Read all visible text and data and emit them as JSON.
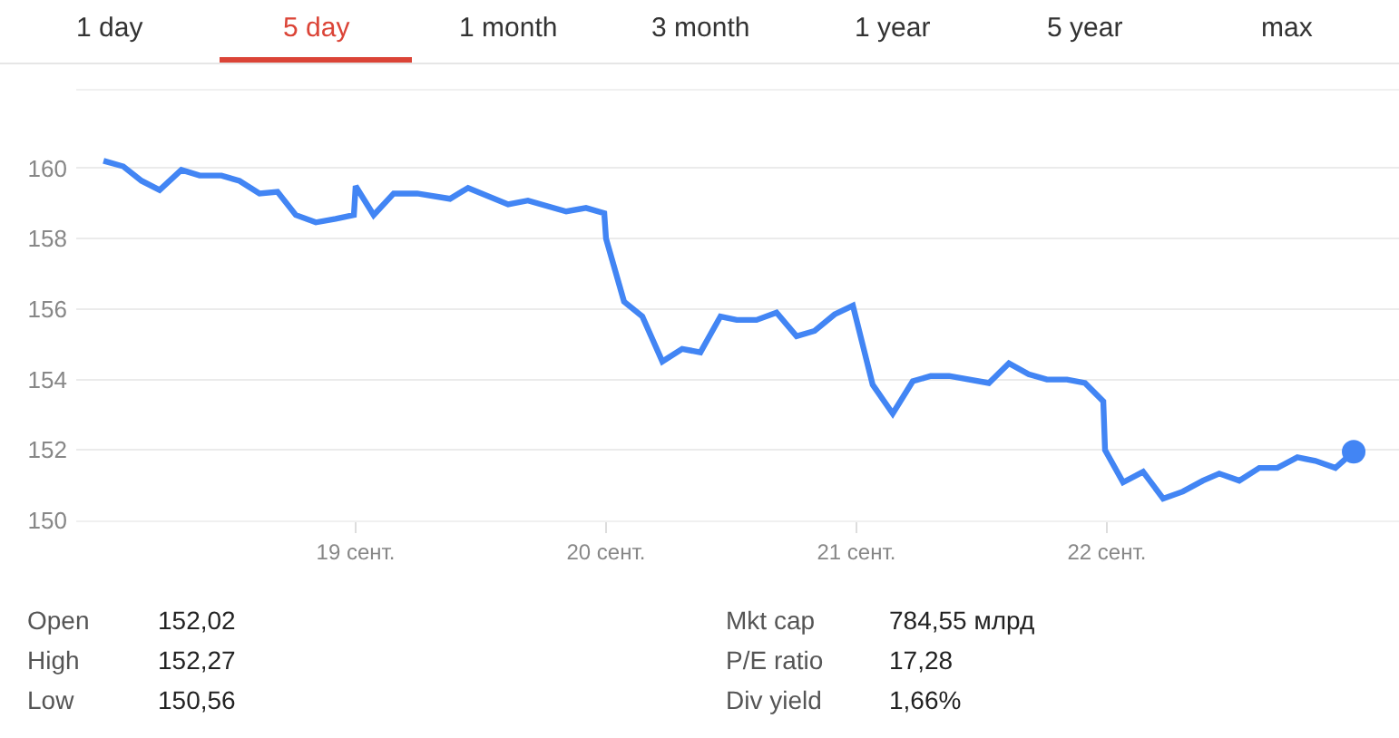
{
  "chart_data": {
    "type": "line",
    "x": [
      17.993,
      18.072,
      18.145,
      18.217,
      18.304,
      18.377,
      18.464,
      18.536,
      18.616,
      18.688,
      18.761,
      18.841,
      18.92,
      18.993,
      19.0,
      19.072,
      19.152,
      19.246,
      19.377,
      19.449,
      19.609,
      19.688,
      19.841,
      19.92,
      19.993,
      20.0,
      20.072,
      20.145,
      20.225,
      20.304,
      20.377,
      20.457,
      20.522,
      20.601,
      20.681,
      20.761,
      20.833,
      20.913,
      20.986,
      21.065,
      21.145,
      21.225,
      21.297,
      21.37,
      21.529,
      21.609,
      21.688,
      21.761,
      21.841,
      21.913,
      21.986,
      21.993,
      22.065,
      22.145,
      22.225,
      22.304,
      22.384,
      22.449,
      22.529,
      22.609,
      22.681,
      22.761,
      22.833,
      22.913,
      22.986
    ],
    "series": [
      {
        "color": "#4285f4",
        "values": [
          160.21,
          160.05,
          159.64,
          159.38,
          159.95,
          159.79,
          159.79,
          159.64,
          159.28,
          159.33,
          158.67,
          158.46,
          158.56,
          158.67,
          159.49,
          158.67,
          159.28,
          159.28,
          159.13,
          159.44,
          158.97,
          159.08,
          158.77,
          158.87,
          158.72,
          158.0,
          156.21,
          155.79,
          154.51,
          154.87,
          154.77,
          155.79,
          155.69,
          155.69,
          155.9,
          155.23,
          155.38,
          155.85,
          156.1,
          153.85,
          153.03,
          153.95,
          154.1,
          154.1,
          153.9,
          154.46,
          154.15,
          154.0,
          154.0,
          153.9,
          153.38,
          152.0,
          151.08,
          151.38,
          150.62,
          150.82,
          151.13,
          151.33,
          151.13,
          151.49,
          151.49,
          151.79,
          151.69,
          151.49,
          151.95
        ]
      },
      {
        "type": "scatter",
        "color": "#4285f4",
        "x": [
          22.986
        ],
        "values": [
          151.95
        ],
        "marker": "circle"
      }
    ],
    "xlim": [
      17.884,
      23.167
    ],
    "xticks": [
      {
        "value": 19,
        "label": "19 сент."
      },
      {
        "value": 20,
        "label": "20 сент."
      },
      {
        "value": 21,
        "label": "21 сент."
      },
      {
        "value": 22,
        "label": "22 сент."
      }
    ],
    "ylim": [
      150,
      162.2
    ],
    "yticks": [
      150,
      152,
      154,
      156,
      158,
      160
    ],
    "grid": "y",
    "marker": "none",
    "line_style": "solid",
    "annotations": [
      "1 day",
      "5 day",
      "1 month",
      "3 month",
      "1 year",
      "5 year",
      "max",
      "Open",
      "152,02",
      "Mkt cap",
      "784,55 млрд",
      "High",
      "152,27",
      "P/E ratio",
      "17,28",
      "Low",
      "150,56",
      "Div yield",
      "1,66%"
    ]
  }
}
